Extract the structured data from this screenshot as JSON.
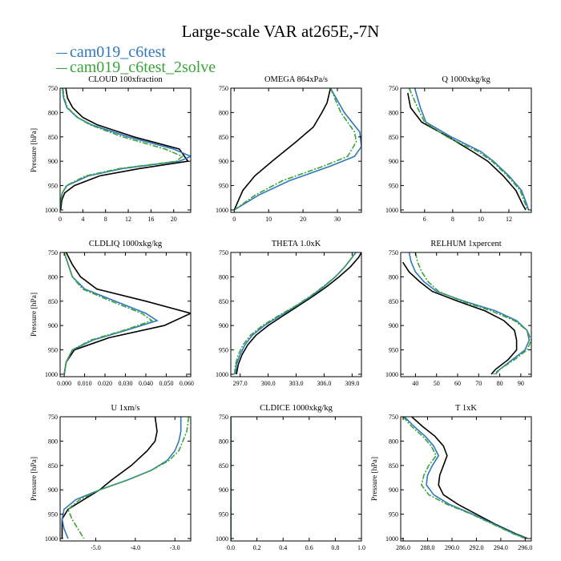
{
  "title": "Large-scale VAR at265E,-7N",
  "legend": [
    {
      "name": "cam019_c6test",
      "color": "#2f78bd"
    },
    {
      "name": "cam019_c6test_2solve",
      "color": "#3aa33a"
    }
  ],
  "colors": {
    "obs": "#000000",
    "c6test": "#2f78bd",
    "c6test_2solve": "#3aa33a"
  },
  "chart_data": [
    {
      "type": "line",
      "title": "CLOUD  100xfraction",
      "ylabel": "Pressure [hPa]",
      "xlim": [
        0,
        23
      ],
      "ylim": [
        750,
        1005
      ],
      "xticks": [
        0,
        4,
        8,
        12,
        16,
        20
      ],
      "xticklabels": [
        "0",
        "4",
        "8",
        "12",
        "16",
        "20"
      ],
      "yticks": [
        750,
        800,
        850,
        900,
        950,
        1000
      ],
      "yticklabels": [
        "750",
        "800",
        "850",
        "900",
        "950",
        "1000"
      ],
      "series": [
        {
          "role": "obs",
          "p": [
            750,
            770,
            790,
            810,
            825,
            850,
            875,
            900,
            915,
            930,
            950,
            965,
            980,
            1000
          ],
          "x": [
            1.0,
            1.3,
            2.2,
            4.0,
            6.5,
            13,
            21,
            22.5,
            14,
            7,
            2.5,
            0.8,
            0.3,
            0.1
          ]
        },
        {
          "role": "c6test",
          "p": [
            750,
            770,
            790,
            810,
            825,
            850,
            875,
            890,
            900,
            915,
            930,
            950,
            965,
            980,
            1000
          ],
          "x": [
            0.4,
            0.6,
            1.2,
            3.0,
            5.5,
            12,
            20,
            23,
            21,
            11,
            5,
            1.2,
            0.4,
            0.1,
            0
          ]
        },
        {
          "role": "c6test_2solve",
          "p": [
            750,
            770,
            790,
            810,
            825,
            850,
            875,
            890,
            900,
            915,
            930,
            950,
            965,
            980,
            1000
          ],
          "x": [
            0.5,
            0.7,
            1.3,
            3.1,
            5.2,
            11,
            18.5,
            21.5,
            20.5,
            10.5,
            4.5,
            1.1,
            0.4,
            0.1,
            0
          ]
        }
      ]
    },
    {
      "type": "line",
      "title": "OMEGA  864xPa/s",
      "ylabel": "",
      "xlim": [
        -1,
        37
      ],
      "ylim": [
        750,
        1005
      ],
      "xticks": [
        0,
        10,
        20,
        30
      ],
      "xticklabels": [
        "0",
        "10",
        "20",
        "30"
      ],
      "yticks": [
        750,
        800,
        850,
        900,
        950,
        1000
      ],
      "yticklabels": [
        "750",
        "800",
        "850",
        "900",
        "950",
        "1000"
      ],
      "series": [
        {
          "role": "obs",
          "p": [
            750,
            780,
            800,
            830,
            860,
            900,
            930,
            960,
            1000
          ],
          "x": [
            28,
            27,
            25.5,
            23,
            18,
            11,
            6,
            2.5,
            0
          ]
        },
        {
          "role": "c6test",
          "p": [
            750,
            800,
            840,
            870,
            890,
            910,
            940,
            970,
            1000
          ],
          "x": [
            28,
            32,
            36.5,
            37,
            35,
            28,
            16,
            7,
            0
          ]
        },
        {
          "role": "c6test_2solve",
          "p": [
            750,
            800,
            840,
            860,
            890,
            910,
            940,
            970,
            1000
          ],
          "x": [
            28,
            31,
            35,
            35.5,
            33,
            26,
            14,
            6,
            0
          ]
        }
      ]
    },
    {
      "type": "line",
      "title": "Q  1000xkg/kg",
      "ylabel": "",
      "xlim": [
        4.3,
        13.6
      ],
      "ylim": [
        750,
        1005
      ],
      "xticks": [
        6,
        8,
        10,
        12
      ],
      "xticklabels": [
        "6",
        "8",
        "10",
        "12"
      ],
      "yticks": [
        750,
        800,
        850,
        900,
        950,
        1000
      ],
      "yticklabels": [
        "750",
        "800",
        "850",
        "900",
        "950",
        "1000"
      ],
      "series": [
        {
          "role": "obs",
          "p": [
            760,
            790,
            820,
            850,
            880,
            900,
            930,
            960,
            990,
            1000
          ],
          "x": [
            4.8,
            5.0,
            5.8,
            7.7,
            9.4,
            10.5,
            11.6,
            12.5,
            13.0,
            13.2
          ]
        },
        {
          "role": "c6test",
          "p": [
            750,
            790,
            820,
            850,
            880,
            900,
            930,
            960,
            990,
            1000
          ],
          "x": [
            5.3,
            5.7,
            6.1,
            7.9,
            10.0,
            10.9,
            12.0,
            12.9,
            13.3,
            13.4
          ]
        },
        {
          "role": "c6test_2solve",
          "p": [
            750,
            790,
            820,
            850,
            880,
            900,
            930,
            960,
            990,
            1000
          ],
          "x": [
            4.9,
            5.5,
            6.0,
            7.6,
            9.8,
            10.8,
            11.9,
            12.8,
            13.2,
            13.3
          ]
        }
      ]
    },
    {
      "type": "line",
      "title": "CLDLIQ  1000xkg/kg",
      "ylabel": "Pressure [hPa]",
      "xlim": [
        -0.002,
        0.062
      ],
      "ylim": [
        750,
        1005
      ],
      "xticks": [
        0,
        0.01,
        0.02,
        0.03,
        0.04,
        0.05,
        0.06
      ],
      "xticklabels": [
        "0.000",
        "0.010",
        "0.020",
        "0.030",
        "0.040",
        "0.050",
        "0.060"
      ],
      "yticks": [
        750,
        800,
        850,
        900,
        950,
        1000
      ],
      "yticklabels": [
        "750",
        "800",
        "850",
        "900",
        "950",
        "1000"
      ],
      "series": [
        {
          "role": "obs",
          "p": [
            750,
            775,
            800,
            825,
            850,
            875,
            900,
            925,
            950,
            975,
            1000
          ],
          "x": [
            0.001,
            0.004,
            0.008,
            0.016,
            0.04,
            0.062,
            0.049,
            0.022,
            0.005,
            0.001,
            0
          ]
        },
        {
          "role": "c6test",
          "p": [
            750,
            775,
            800,
            825,
            850,
            875,
            890,
            910,
            930,
            950,
            975,
            1000
          ],
          "x": [
            0,
            0.002,
            0.004,
            0.01,
            0.025,
            0.04,
            0.0455,
            0.03,
            0.014,
            0.004,
            0.001,
            0
          ]
        },
        {
          "role": "c6test_2solve",
          "p": [
            750,
            775,
            800,
            825,
            850,
            875,
            890,
            910,
            930,
            950,
            975,
            1000
          ],
          "x": [
            0,
            0.002,
            0.004,
            0.009,
            0.023,
            0.038,
            0.043,
            0.029,
            0.013,
            0.004,
            0.001,
            0
          ]
        }
      ]
    },
    {
      "type": "line",
      "title": "THETA  1.0xK",
      "ylabel": "",
      "xlim": [
        296,
        310
      ],
      "ylim": [
        750,
        1005
      ],
      "xticks": [
        297,
        300,
        303,
        306,
        309
      ],
      "xticklabels": [
        "297.0",
        "300.0",
        "303.0",
        "306.0",
        "309.0"
      ],
      "yticks": [
        750,
        800,
        850,
        900,
        950,
        1000
      ],
      "yticklabels": [
        "750",
        "800",
        "850",
        "900",
        "950",
        "1000"
      ],
      "series": [
        {
          "role": "obs",
          "p": [
            1000,
            980,
            960,
            940,
            920,
            900,
            880,
            860,
            840,
            820,
            800,
            780,
            760,
            750
          ],
          "x": [
            296.6,
            296.8,
            297.2,
            297.8,
            298.7,
            300.0,
            301.6,
            303.2,
            304.8,
            306.3,
            307.6,
            308.8,
            309.7,
            310.0
          ]
        },
        {
          "role": "c6test",
          "p": [
            1000,
            980,
            960,
            940,
            920,
            900,
            880,
            860,
            840,
            820,
            800,
            780,
            760,
            750
          ],
          "x": [
            296.5,
            296.6,
            297.0,
            297.5,
            298.3,
            299.6,
            301.3,
            303.0,
            304.6,
            306.0,
            307.2,
            308.2,
            309.0,
            309.4
          ]
        },
        {
          "role": "c6test_2solve",
          "p": [
            1000,
            980,
            960,
            940,
            920,
            900,
            880,
            860,
            840,
            820,
            800,
            780,
            760,
            750
          ],
          "x": [
            296.4,
            296.5,
            296.8,
            297.3,
            298.1,
            299.4,
            301.1,
            302.9,
            304.5,
            305.9,
            307.2,
            308.2,
            309.0,
            309.3
          ]
        }
      ]
    },
    {
      "type": "line",
      "title": "RELHUM  1xpercent",
      "ylabel": "",
      "xlim": [
        33,
        95
      ],
      "ylim": [
        750,
        1005
      ],
      "xticks": [
        40,
        50,
        60,
        70,
        80,
        90
      ],
      "xticklabels": [
        "40",
        "50",
        "60",
        "70",
        "80",
        "90"
      ],
      "yticks": [
        750,
        800,
        850,
        900,
        950,
        1000
      ],
      "yticklabels": [
        "750",
        "800",
        "850",
        "900",
        "950",
        "1000"
      ],
      "series": [
        {
          "role": "obs",
          "p": [
            770,
            790,
            810,
            830,
            850,
            870,
            890,
            910,
            930,
            950,
            970,
            990,
            1000
          ],
          "x": [
            34,
            37,
            42,
            48,
            60,
            73,
            82,
            87,
            88,
            88,
            84,
            78,
            76
          ]
        },
        {
          "role": "c6test",
          "p": [
            750,
            770,
            790,
            810,
            830,
            850,
            870,
            890,
            910,
            930,
            950,
            970,
            990,
            1000
          ],
          "x": [
            37,
            38,
            40,
            44,
            50,
            63,
            78,
            88,
            93,
            94,
            92,
            86,
            80,
            78
          ]
        },
        {
          "role": "c6test_2solve",
          "p": [
            750,
            770,
            790,
            810,
            830,
            850,
            870,
            890,
            910,
            930,
            950,
            970,
            990,
            1000
          ],
          "x": [
            40,
            41,
            43,
            46,
            51,
            62,
            76,
            87,
            93,
            95,
            93,
            87,
            80,
            77
          ]
        }
      ]
    },
    {
      "type": "line",
      "title": "U  1xm/s",
      "ylabel": "Pressure [hPa]",
      "xlim": [
        -5.9,
        -2.6
      ],
      "ylim": [
        750,
        1005
      ],
      "xticks": [
        -5,
        -4,
        -3
      ],
      "xticklabels": [
        "-5.0",
        "-4.0",
        "-3.0"
      ],
      "yticks": [
        750,
        800,
        850,
        900,
        950,
        1000
      ],
      "yticklabels": [
        "750",
        "800",
        "850",
        "900",
        "950",
        "1000"
      ],
      "series": [
        {
          "role": "obs",
          "p": [
            750,
            780,
            800,
            820,
            850,
            880,
            900,
            920,
            940,
            960,
            980,
            1000
          ],
          "x": [
            -3.5,
            -3.45,
            -3.5,
            -3.7,
            -4.1,
            -4.6,
            -4.9,
            -5.3,
            -5.7,
            -5.85,
            -5.85,
            -5.85
          ]
        },
        {
          "role": "c6test",
          "p": [
            750,
            780,
            800,
            820,
            840,
            860,
            880,
            900,
            920,
            940,
            960,
            980,
            1000
          ],
          "x": [
            -2.85,
            -2.85,
            -2.9,
            -3.0,
            -3.2,
            -3.6,
            -4.2,
            -4.9,
            -5.5,
            -5.8,
            -5.85,
            -5.8,
            -5.7
          ]
        },
        {
          "role": "c6test_2solve",
          "p": [
            750,
            780,
            800,
            820,
            840,
            860,
            880,
            900,
            920,
            940,
            960,
            980,
            1000
          ],
          "x": [
            -2.65,
            -2.7,
            -2.8,
            -2.9,
            -3.15,
            -3.6,
            -4.2,
            -4.9,
            -5.4,
            -5.7,
            -5.6,
            -5.45,
            -5.3
          ]
        }
      ]
    },
    {
      "type": "line",
      "title": "CLDICE  1000xkg/kg",
      "ylabel": "",
      "xlim": [
        0,
        1
      ],
      "ylim": [
        750,
        1005
      ],
      "xticks": [
        0,
        0.2,
        0.4,
        0.6,
        0.8,
        1.0
      ],
      "xticklabels": [
        "0.0",
        "0.2",
        "0.4",
        "0.6",
        "0.8",
        "1.0"
      ],
      "yticks": [
        750,
        800,
        850,
        900,
        950,
        1000
      ],
      "yticklabels": [
        "750",
        "800",
        "850",
        "900",
        "950",
        "1000"
      ],
      "series": [
        {
          "role": "obs",
          "p": [
            750,
            1005
          ],
          "x": [
            0,
            0
          ]
        },
        {
          "role": "c6test",
          "p": [
            750,
            1005
          ],
          "x": [
            0,
            0
          ]
        },
        {
          "role": "c6test_2solve",
          "p": [
            750,
            1005
          ],
          "x": [
            0,
            0
          ]
        }
      ]
    },
    {
      "type": "line",
      "title": "T  1xK",
      "ylabel": "Pressure [hPa]",
      "xlim": [
        285.8,
        296.5
      ],
      "ylim": [
        750,
        1005
      ],
      "xticks": [
        286,
        288,
        290,
        292,
        294,
        296
      ],
      "xticklabels": [
        "286.0",
        "288.0",
        "290.0",
        "292.0",
        "294.0",
        "296.0"
      ],
      "yticks": [
        750,
        800,
        850,
        900,
        950,
        1000
      ],
      "yticklabels": [
        "750",
        "800",
        "850",
        "900",
        "950",
        "1000"
      ],
      "series": [
        {
          "role": "obs",
          "p": [
            750,
            770,
            790,
            810,
            830,
            850,
            870,
            890,
            910,
            930,
            950,
            970,
            990,
            1000
          ],
          "x": [
            286.7,
            287.6,
            288.6,
            289.3,
            289.6,
            289.3,
            289.0,
            288.9,
            289.3,
            290.5,
            292.0,
            293.5,
            295.2,
            296.2
          ]
        },
        {
          "role": "c6test",
          "p": [
            750,
            770,
            790,
            810,
            830,
            850,
            870,
            890,
            910,
            930,
            950,
            970,
            990,
            1000
          ],
          "x": [
            286.1,
            286.9,
            287.8,
            288.5,
            288.9,
            288.4,
            288.0,
            287.9,
            288.5,
            289.8,
            291.7,
            293.4,
            295.1,
            296.1
          ]
        },
        {
          "role": "c6test_2solve",
          "p": [
            750,
            770,
            790,
            810,
            830,
            850,
            870,
            890,
            910,
            930,
            950,
            970,
            990,
            1000
          ],
          "x": [
            286.0,
            286.7,
            287.6,
            288.3,
            288.7,
            288.1,
            287.7,
            287.5,
            288.1,
            289.6,
            291.6,
            293.3,
            295.0,
            296.0
          ]
        }
      ]
    }
  ]
}
